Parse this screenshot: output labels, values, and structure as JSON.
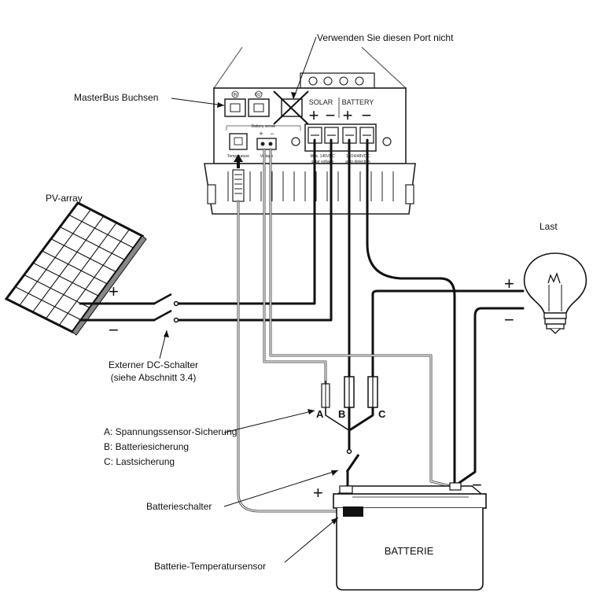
{
  "labels": {
    "port_warning": "Verwenden Sie diesen Port nicht",
    "masterbus": "MasterBus Buchsen",
    "pv_array": "PV-array",
    "load": "Last",
    "dc_switch_line1": "Externer DC-Schalter",
    "dc_switch_line2": "(siehe Abschnitt 3.4)",
    "fuse_a_desc": "A: Spannungssensor-Sicherung",
    "fuse_b_desc": "B: Batteriesicherung",
    "fuse_c_desc": "C: Lastsicherung",
    "battery_switch": "Batterieschalter",
    "battery_temp_sensor": "Batterie-Temperatursensor",
    "battery": "BATTERIE"
  },
  "device": {
    "solar": "SOLAR",
    "battery": "BATTERY",
    "port_in": "IN",
    "port_out": "OUT",
    "battery_sense": "Battery sense",
    "temperature": "Temperature",
    "voltage": "Voltage",
    "solar_note_1": "Max. 145VDC",
    "solar_note_2": "solar voltage",
    "battery_note_1": "12/24/48VDC",
    "battery_note_2": "auto detection"
  },
  "fuse_letters": {
    "a": "A",
    "b": "B",
    "c": "C"
  },
  "polarity": {
    "plus": "+",
    "minus": "−"
  }
}
